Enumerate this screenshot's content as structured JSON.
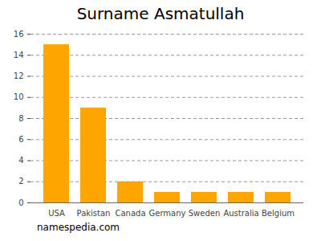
{
  "chart_data": {
    "type": "bar",
    "title": "Surname Asmatullah",
    "caption": "namespedia.com",
    "categories": [
      "USA",
      "Pakistan",
      "Canada",
      "Germany",
      "Sweden",
      "Australia",
      "Belgium"
    ],
    "values": [
      15,
      9,
      2,
      1,
      1,
      1,
      1
    ],
    "color": "#ffa500",
    "ylim": [
      0,
      16
    ],
    "yticks": [
      0,
      2,
      4,
      6,
      8,
      10,
      12,
      14,
      16
    ],
    "grid": true
  }
}
